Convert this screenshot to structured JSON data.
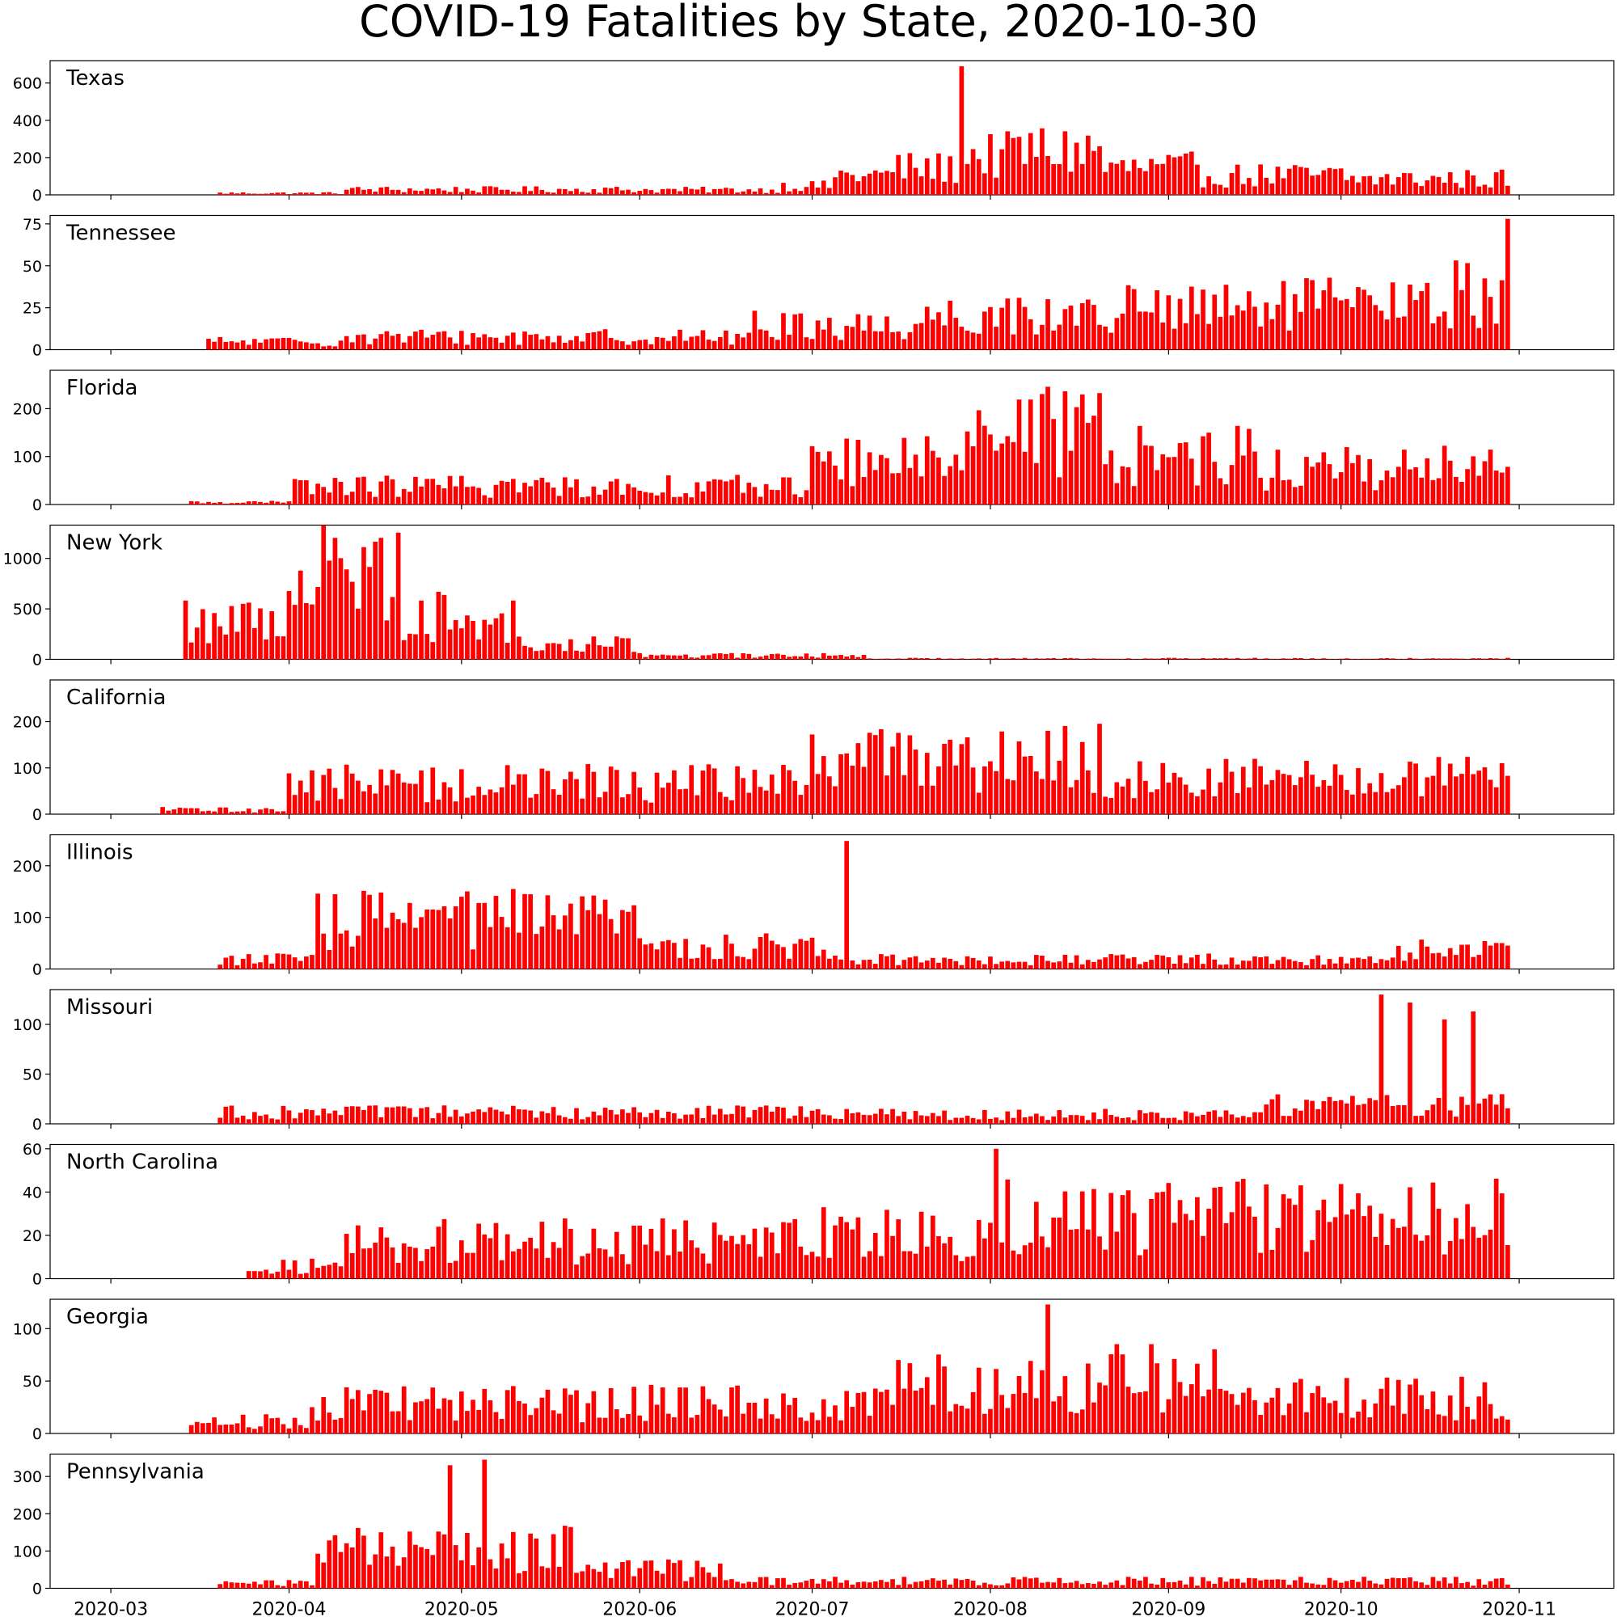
{
  "chart_data": {
    "type": "bar",
    "title": "COVID-19 Fatalities by State, 2020-10-30",
    "bar_color": "#ff0000",
    "x_axis": {
      "start_date": "2020-02-01",
      "end_date": "2020-11-01",
      "tick_labels": [
        "2020-03",
        "2020-04",
        "2020-05",
        "2020-06",
        "2020-07",
        "2020-08",
        "2020-09",
        "2020-10",
        "2020-11"
      ]
    },
    "panels": [
      {
        "name": "Texas",
        "ylim": [
          0,
          720
        ],
        "yticks": [
          0,
          200,
          400,
          600
        ],
        "bars": [
          {
            "start": "2020-03-20",
            "end": "2020-04-10",
            "value": 10
          },
          {
            "start": "2020-04-11",
            "end": "2020-06-01",
            "value": 30
          },
          {
            "start": "2020-06-02",
            "end": "2020-06-25",
            "value": 28
          },
          {
            "start": "2020-06-26",
            "end": "2020-07-04",
            "value": 50
          },
          {
            "start": "2020-07-05",
            "end": "2020-07-14",
            "value": 110
          },
          {
            "start": "2020-07-15",
            "end": "2020-07-26",
            "value": 150
          },
          {
            "date": "2020-07-27",
            "value": 690
          },
          {
            "start": "2020-07-28",
            "end": "2020-08-04",
            "value": 220
          },
          {
            "start": "2020-08-05",
            "end": "2020-08-20",
            "value": 250
          },
          {
            "start": "2020-08-21",
            "end": "2020-09-05",
            "value": 150
          },
          {
            "start": "2020-09-06",
            "end": "2020-10-01",
            "value": 110
          },
          {
            "start": "2020-10-02",
            "end": "2020-10-30",
            "value": 90
          }
        ]
      },
      {
        "name": "Tennessee",
        "ylim": [
          0,
          80
        ],
        "yticks": [
          0,
          25,
          50,
          75
        ],
        "bars": [
          {
            "start": "2020-03-18",
            "end": "2020-04-10",
            "value": 5
          },
          {
            "start": "2020-04-11",
            "end": "2020-06-20",
            "value": 8
          },
          {
            "start": "2020-06-21",
            "end": "2020-07-20",
            "value": 15
          },
          {
            "start": "2020-07-21",
            "end": "2020-08-20",
            "value": 22
          },
          {
            "start": "2020-08-21",
            "end": "2020-09-20",
            "value": 25
          },
          {
            "start": "2020-09-21",
            "end": "2020-10-20",
            "value": 28
          },
          {
            "start": "2020-10-21",
            "end": "2020-10-29",
            "value": 35
          },
          {
            "date": "2020-10-30",
            "value": 78
          }
        ]
      },
      {
        "name": "Florida",
        "ylim": [
          0,
          280
        ],
        "yticks": [
          0,
          100,
          200
        ],
        "bars": [
          {
            "start": "2020-03-15",
            "end": "2020-04-01",
            "value": 5
          },
          {
            "start": "2020-04-02",
            "end": "2020-06-30",
            "value": 40
          },
          {
            "start": "2020-07-01",
            "end": "2020-07-20",
            "value": 90
          },
          {
            "start": "2020-07-21",
            "end": "2020-08-20",
            "value": 160
          },
          {
            "start": "2020-08-21",
            "end": "2020-09-15",
            "value": 110
          },
          {
            "start": "2020-09-16",
            "end": "2020-10-30",
            "value": 80
          }
        ]
      },
      {
        "name": "New York",
        "ylim": [
          0,
          1330
        ],
        "yticks": [
          0,
          500,
          1000
        ],
        "bars": [
          {
            "start": "2020-03-14",
            "end": "2020-03-31",
            "value": 400
          },
          {
            "start": "2020-04-01",
            "end": "2020-04-20",
            "value": 950
          },
          {
            "start": "2020-04-21",
            "end": "2020-05-10",
            "value": 450
          },
          {
            "start": "2020-05-11",
            "end": "2020-06-01",
            "value": 150
          },
          {
            "start": "2020-06-02",
            "end": "2020-07-10",
            "value": 40
          },
          {
            "start": "2020-07-11",
            "end": "2020-10-30",
            "value": 10
          }
        ]
      },
      {
        "name": "California",
        "ylim": [
          0,
          290
        ],
        "yticks": [
          0,
          100,
          200
        ],
        "bars": [
          {
            "start": "2020-03-10",
            "end": "2020-03-31",
            "value": 10
          },
          {
            "start": "2020-04-01",
            "end": "2020-06-30",
            "value": 70
          },
          {
            "start": "2020-07-01",
            "end": "2020-08-20",
            "value": 130
          },
          {
            "start": "2020-08-21",
            "end": "2020-10-30",
            "value": 80
          }
        ]
      },
      {
        "name": "Illinois",
        "ylim": [
          0,
          260
        ],
        "yticks": [
          0,
          100,
          200
        ],
        "bars": [
          {
            "start": "2020-03-20",
            "end": "2020-04-05",
            "value": 20
          },
          {
            "start": "2020-04-06",
            "end": "2020-05-31",
            "value": 100
          },
          {
            "start": "2020-06-01",
            "end": "2020-07-06",
            "value": 45
          },
          {
            "date": "2020-07-07",
            "value": 248
          },
          {
            "start": "2020-07-08",
            "end": "2020-10-10",
            "value": 20
          },
          {
            "start": "2020-10-11",
            "end": "2020-10-30",
            "value": 40
          }
        ]
      },
      {
        "name": "Missouri",
        "ylim": [
          0,
          135
        ],
        "yticks": [
          0,
          50,
          100
        ],
        "bars": [
          {
            "start": "2020-03-20",
            "end": "2020-06-30",
            "value": 12
          },
          {
            "start": "2020-07-01",
            "end": "2020-09-15",
            "value": 10
          },
          {
            "start": "2020-09-16",
            "end": "2020-10-30",
            "value": 20
          },
          {
            "date": "2020-10-08",
            "value": 130
          },
          {
            "date": "2020-10-13",
            "value": 122
          },
          {
            "date": "2020-10-19",
            "value": 105
          },
          {
            "date": "2020-10-24",
            "value": 113
          }
        ]
      },
      {
        "name": "North Carolina",
        "ylim": [
          0,
          62
        ],
        "yticks": [
          0,
          20,
          40,
          60
        ],
        "bars": [
          {
            "start": "2020-03-25",
            "end": "2020-04-10",
            "value": 6
          },
          {
            "start": "2020-04-11",
            "end": "2020-06-30",
            "value": 18
          },
          {
            "start": "2020-07-01",
            "end": "2020-08-01",
            "value": 22
          },
          {
            "date": "2020-08-02",
            "value": 60
          },
          {
            "start": "2020-08-03",
            "end": "2020-10-30",
            "value": 30
          }
        ]
      },
      {
        "name": "Georgia",
        "ylim": [
          0,
          128
        ],
        "yticks": [
          0,
          50,
          100
        ],
        "bars": [
          {
            "start": "2020-03-15",
            "end": "2020-04-04",
            "value": 12
          },
          {
            "start": "2020-04-05",
            "end": "2020-07-15",
            "value": 30
          },
          {
            "start": "2020-07-16",
            "end": "2020-08-10",
            "value": 50
          },
          {
            "date": "2020-08-11",
            "value": 123
          },
          {
            "start": "2020-08-12",
            "end": "2020-09-15",
            "value": 55
          },
          {
            "start": "2020-09-16",
            "end": "2020-10-30",
            "value": 35
          }
        ]
      },
      {
        "name": "Pennsylvania",
        "ylim": [
          0,
          360
        ],
        "yticks": [
          0,
          100,
          200,
          300
        ],
        "bars": [
          {
            "start": "2020-03-20",
            "end": "2020-04-05",
            "value": 15
          },
          {
            "start": "2020-04-06",
            "end": "2020-05-20",
            "value": 110
          },
          {
            "start": "2020-05-21",
            "end": "2020-06-15",
            "value": 50
          },
          {
            "start": "2020-06-16",
            "end": "2020-10-30",
            "value": 20
          },
          {
            "date": "2020-04-29",
            "value": 330
          },
          {
            "date": "2020-05-05",
            "value": 345
          }
        ]
      }
    ]
  }
}
